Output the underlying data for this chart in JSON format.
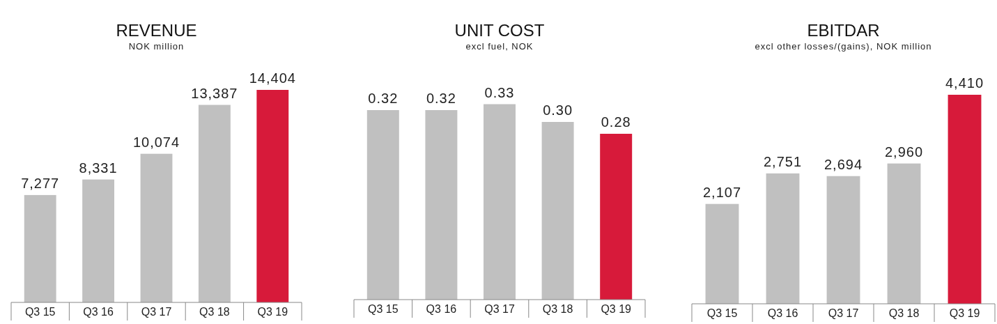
{
  "chart_data": [
    {
      "type": "bar",
      "title": "REVENUE",
      "subtitle": "NOK million",
      "categories": [
        "Q3 15",
        "Q3 16",
        "Q3 17",
        "Q3 18",
        "Q3 19"
      ],
      "values": [
        7277,
        8331,
        10074,
        13387,
        14404
      ],
      "colors": [
        "#c0c0c0",
        "#c0c0c0",
        "#c0c0c0",
        "#c0c0c0",
        "#d71a3a"
      ],
      "data_labels": true,
      "value_labels": [
        "7,277",
        "8,331",
        "10,074",
        "13,387",
        "14,404"
      ]
    },
    {
      "type": "bar",
      "title": "UNIT COST",
      "subtitle": "excl fuel, NOK",
      "categories": [
        "Q3 15",
        "Q3 16",
        "Q3 17",
        "Q3 18",
        "Q3 19"
      ],
      "values": [
        0.32,
        0.32,
        0.33,
        0.3,
        0.28
      ],
      "colors": [
        "#c0c0c0",
        "#c0c0c0",
        "#c0c0c0",
        "#c0c0c0",
        "#d71a3a"
      ],
      "data_labels": true,
      "value_labels": [
        "0.32",
        "0.32",
        "0.33",
        "0.30",
        "0.28"
      ]
    },
    {
      "type": "bar",
      "title": "EBITDAR",
      "subtitle": "excl other losses/(gains), NOK million",
      "categories": [
        "Q3 15",
        "Q3 16",
        "Q3 17",
        "Q3 18",
        "Q3 19"
      ],
      "values": [
        2107,
        2751,
        2694,
        2960,
        4410
      ],
      "colors": [
        "#c0c0c0",
        "#c0c0c0",
        "#c0c0c0",
        "#c0c0c0",
        "#d71a3a"
      ],
      "data_labels": true,
      "value_labels": [
        "2,107",
        "2,751",
        "2,694",
        "2,960",
        "4,410"
      ]
    }
  ]
}
